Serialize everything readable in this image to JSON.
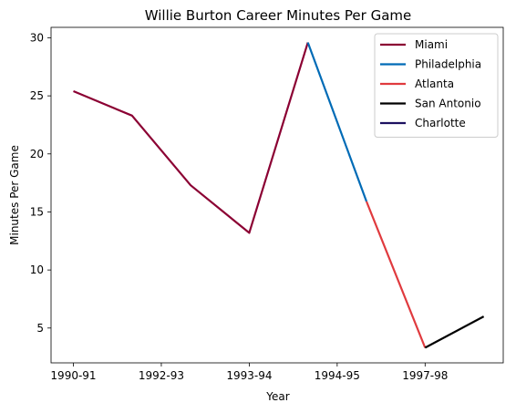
{
  "chart_data": {
    "type": "line",
    "title": "Willie Burton Career Minutes Per Game",
    "xlabel": "Year",
    "ylabel": "Minutes Per Game",
    "x_tick_labels": [
      "1990-91",
      "1992-93",
      "1993-94",
      "1994-95",
      "1997-98"
    ],
    "y_ticks": [
      5,
      10,
      15,
      20,
      25,
      30
    ],
    "ylim": [
      2.0,
      30.9
    ],
    "grid": false,
    "legend_position": "top-right",
    "series": [
      {
        "name": "Miami",
        "color": "#8b0033",
        "points": [
          [
            1990,
            25.4
          ],
          [
            1991,
            23.3
          ],
          [
            1992,
            17.3
          ],
          [
            1993,
            13.2
          ],
          [
            1994,
            29.6
          ]
        ]
      },
      {
        "name": "Philadelphia",
        "color": "#006bb6",
        "points": [
          [
            1994,
            29.6
          ],
          [
            1995,
            15.9
          ]
        ]
      },
      {
        "name": "Atlanta",
        "color": "#e03a3e",
        "points": [
          [
            1995,
            15.9
          ],
          [
            1996,
            3.3
          ]
        ]
      },
      {
        "name": "San Antonio",
        "color": "#000000",
        "points": [
          [
            1996,
            3.3
          ],
          [
            1997,
            6.0
          ]
        ]
      },
      {
        "name": "Charlotte",
        "color": "#1d1160",
        "points": []
      }
    ]
  }
}
